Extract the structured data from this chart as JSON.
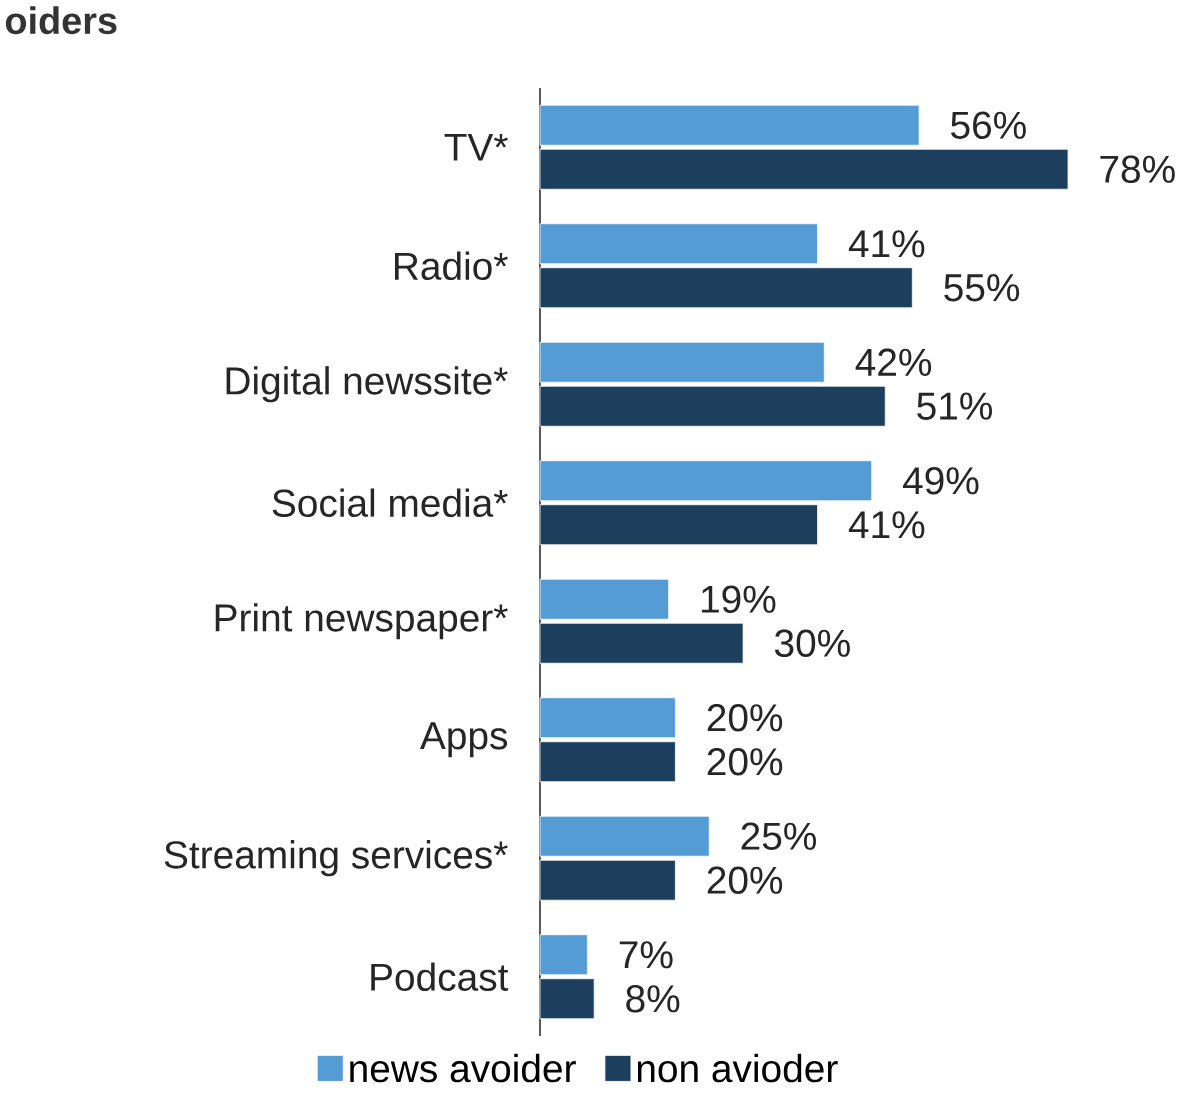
{
  "chart_data": {
    "type": "bar",
    "orientation": "horizontal",
    "title": "oiders",
    "categories": [
      "TV*",
      "Radio*",
      "Digital newssite*",
      "Social media*",
      "Print newspaper*",
      "Apps",
      "Streaming services*",
      "Podcast"
    ],
    "series": [
      {
        "name": "news avoider",
        "color": "#559bd4",
        "values": [
          56,
          41,
          42,
          49,
          19,
          20,
          25,
          7
        ],
        "value_labels": [
          "56%",
          "41%",
          "42%",
          "49%",
          "19%",
          "20%",
          "25%",
          "7%"
        ]
      },
      {
        "name": "non avioder",
        "color": "#1c3f5e",
        "values": [
          78,
          55,
          51,
          41,
          30,
          20,
          20,
          8
        ],
        "value_labels": [
          "78%",
          "55%",
          "51%",
          "41%",
          "30%",
          "20%",
          "20%",
          "8%"
        ]
      }
    ],
    "legend": "bottom"
  }
}
